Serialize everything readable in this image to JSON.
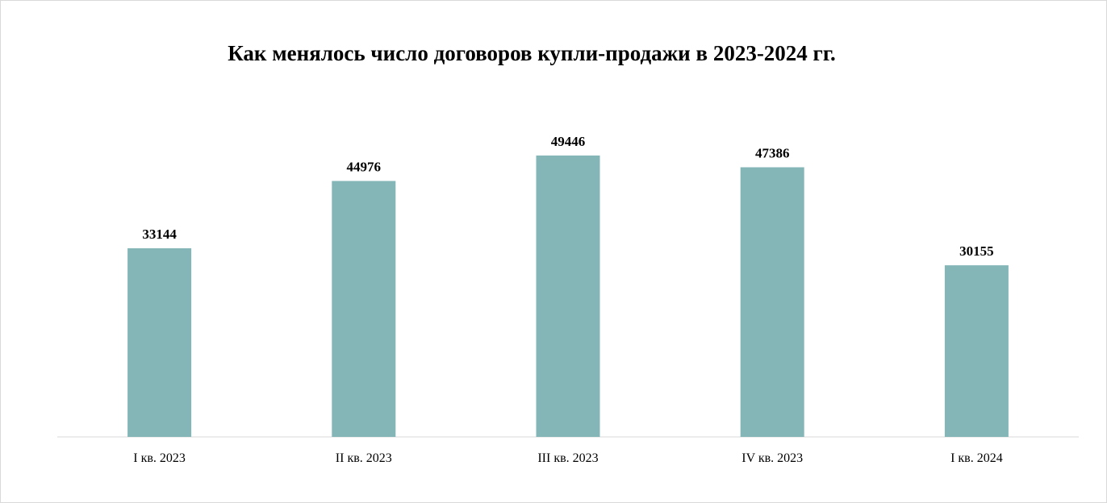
{
  "chart_data": {
    "type": "bar",
    "title": "Как менялось число договоров купли-продажи в 2023-2024 гг.",
    "xlabel": "",
    "ylabel": "",
    "categories": [
      "I кв. 2023",
      "II кв. 2023",
      "III кв. 2023",
      "IV кв. 2023",
      "I кв. 2024"
    ],
    "values": [
      33144,
      44976,
      49446,
      47386,
      30155
    ],
    "ylim": [
      0,
      55000
    ],
    "grid": false,
    "legend": "none",
    "bar_color": "#84b6b8",
    "axis_color": "#d9d9d9"
  }
}
